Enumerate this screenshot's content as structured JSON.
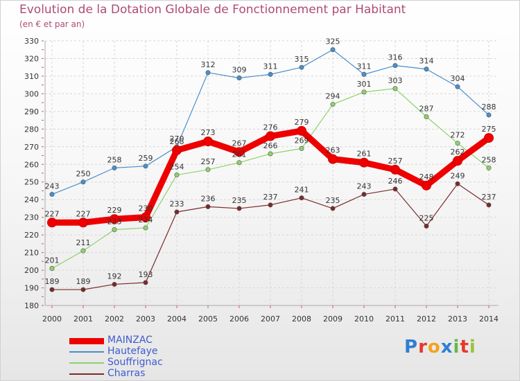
{
  "header": {
    "title": "Evolution de la Dotation Globale de Fonctionnement par Habitant",
    "subtitle": "(en € et par an)"
  },
  "brand": {
    "letters": [
      "P",
      "r",
      "o",
      "x",
      "i",
      "t",
      "i"
    ],
    "colors": [
      "#2f7fd0",
      "#e5392a",
      "#f4a21e",
      "#2f7fd0",
      "#63b946",
      "#e5392a",
      "#9bc23a"
    ]
  },
  "chart_data": {
    "type": "line",
    "categories": [
      "2000",
      "2001",
      "2002",
      "2003",
      "2004",
      "2005",
      "2006",
      "2007",
      "2008",
      "2009",
      "2010",
      "2011",
      "2012",
      "2013",
      "2014"
    ],
    "ylim": [
      180,
      330
    ],
    "yticks": [
      180,
      190,
      200,
      210,
      220,
      230,
      240,
      250,
      260,
      270,
      280,
      290,
      300,
      310,
      320,
      330
    ],
    "ytick_labels": [
      "180",
      "190",
      "200",
      "210",
      "220",
      "230",
      "240",
      "250",
      "260",
      "270",
      "280",
      "290",
      "300",
      "310",
      "320",
      "330"
    ],
    "grid": true,
    "legend_position": "bottom-left",
    "series": [
      {
        "name": "Hautefaye",
        "color": "#4a8fcc",
        "values": [
          243,
          250,
          258,
          259,
          270,
          312,
          309,
          311,
          315,
          325,
          311,
          316,
          314,
          304,
          288
        ],
        "labels": [
          "243",
          "250",
          "258",
          "259",
          "270",
          "312",
          "309",
          "311",
          "315",
          "325",
          "311",
          "316",
          "314",
          "304",
          "288"
        ]
      },
      {
        "name": "Souffrignac",
        "color": "#8fd16a",
        "values": [
          201,
          211,
          223,
          224,
          254,
          257,
          261,
          266,
          269,
          294,
          301,
          303,
          287,
          272,
          258
        ],
        "labels": [
          "201",
          "211",
          "223",
          "224",
          "254",
          "257",
          "261",
          "266",
          "269",
          "294",
          "301",
          "303",
          "287",
          "272",
          "258"
        ]
      },
      {
        "name": "Charras",
        "color": "#7a2a2a",
        "values": [
          189,
          189,
          192,
          193,
          233,
          236,
          235,
          237,
          241,
          235,
          243,
          246,
          225,
          249,
          237
        ],
        "labels": [
          "189",
          "189",
          "192",
          "193",
          "233",
          "236",
          "235",
          "237",
          "241",
          "235",
          "243",
          "246",
          "225",
          "249",
          "237"
        ]
      },
      {
        "name": "MAINZAC",
        "color": "#ee0000",
        "values": [
          227,
          227,
          229,
          230,
          268,
          273,
          267,
          276,
          279,
          263,
          261,
          257,
          248,
          262,
          275
        ],
        "labels": [
          "227",
          "227",
          "229",
          "230",
          "268",
          "273",
          "267",
          "276",
          "279",
          "263",
          "261",
          "257",
          "248",
          "262",
          "275"
        ]
      }
    ],
    "legend_order": [
      "MAINZAC",
      "Hautefaye",
      "Souffrignac",
      "Charras"
    ]
  }
}
